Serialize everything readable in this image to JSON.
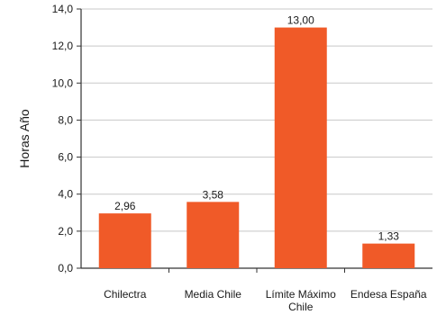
{
  "chart_data": {
    "type": "bar",
    "title": "",
    "xlabel": "",
    "ylabel": "Horas Año",
    "ylim": [
      0,
      14
    ],
    "yticks": [
      0,
      2,
      4,
      6,
      8,
      10,
      12,
      14
    ],
    "ytick_labels": [
      "0,0",
      "2,0",
      "4,0",
      "6,0",
      "8,0",
      "10,0",
      "12,0",
      "14,0"
    ],
    "grid": true,
    "legend": "none",
    "categories": [
      [
        "Chilectra"
      ],
      [
        "Media Chile"
      ],
      [
        "Límite Máximo",
        "Chile"
      ],
      [
        "Endesa España"
      ]
    ],
    "values": [
      2.96,
      3.58,
      13.0,
      1.33
    ],
    "value_labels": [
      "2,96",
      "3,58",
      "13,00",
      "1,33"
    ],
    "colors": {
      "bar": "#f05a28",
      "grid": "#c8c8c8",
      "axis": "#333333"
    }
  }
}
